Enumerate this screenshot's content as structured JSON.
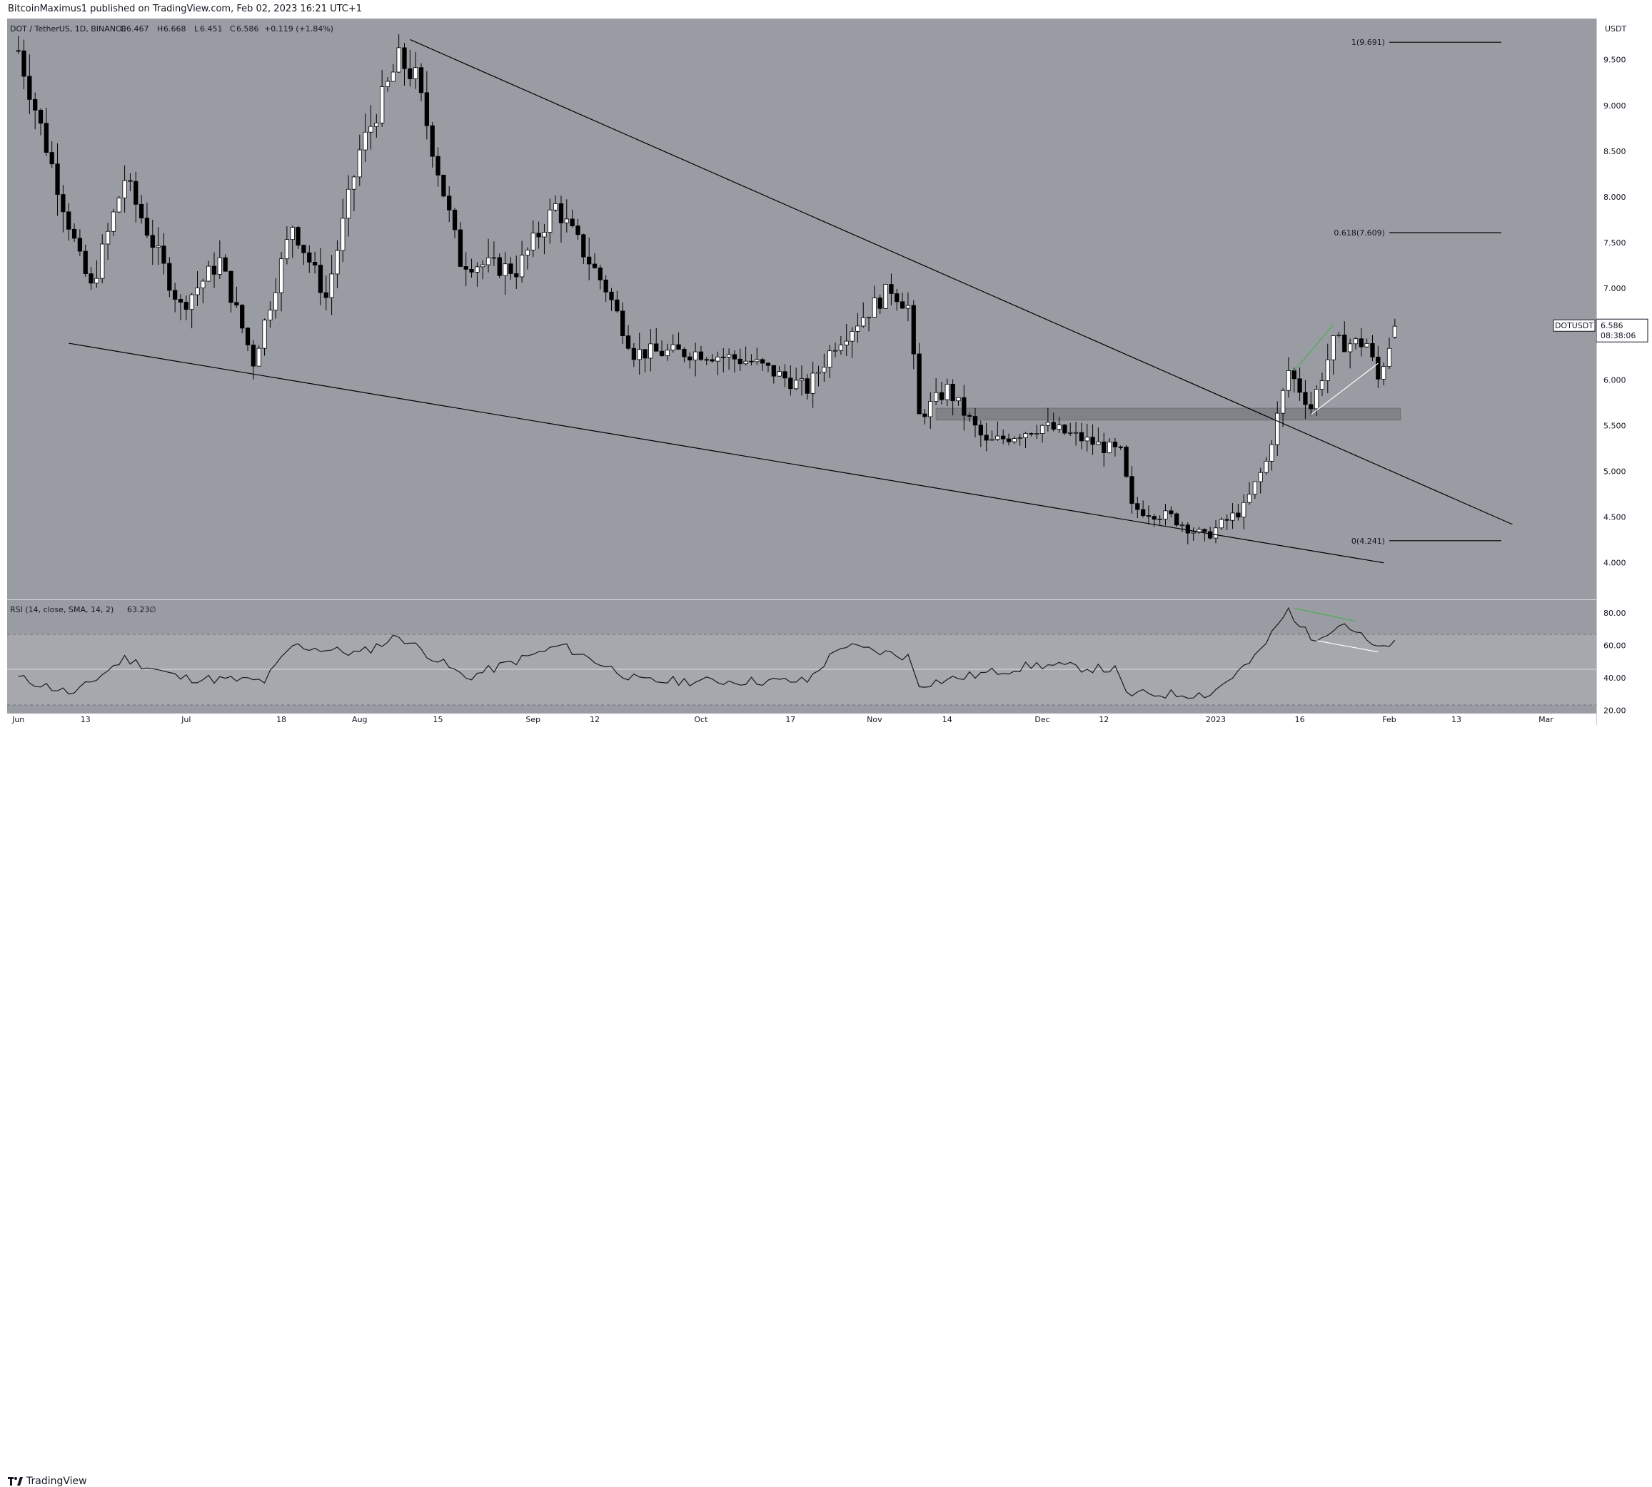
{
  "header": {
    "publisher": "BitcoinMaximus1 published on TradingView.com, Feb 02, 2023 16:21 UTC+1"
  },
  "legend": {
    "symbol": "DOT / TetherUS, 1D, BINANCE",
    "open_label": "O",
    "open": "6.467",
    "high_label": "H",
    "high": "6.668",
    "low_label": "L",
    "low": "6.451",
    "close_label": "C",
    "close": "6.586",
    "change": "+0.119 (+1.84%)"
  },
  "rsi_legend": {
    "label": "RSI (14, close, SMA, 14, 2)",
    "value": "63.23",
    "extra": "∅"
  },
  "price_axis": {
    "currency": "USDT",
    "ticks": [
      "9.500",
      "9.000",
      "8.500",
      "8.000",
      "7.500",
      "7.000",
      "6.500",
      "6.000",
      "5.500",
      "5.000",
      "4.500",
      "4.000"
    ]
  },
  "rsi_axis": {
    "ticks": [
      "80.00",
      "60.00",
      "40.00",
      "20.00"
    ]
  },
  "time_axis": {
    "labels": [
      "Jun",
      "13",
      "Jul",
      "18",
      "Aug",
      "15",
      "Sep",
      "12",
      "Oct",
      "17",
      "Nov",
      "14",
      "Dec",
      "12",
      "2023",
      "16",
      "Feb",
      "13",
      "Mar"
    ]
  },
  "current_price_tag": {
    "symbol": "DOTUSDT",
    "price": "6.586",
    "countdown": "08:38:06"
  },
  "fib_levels": [
    {
      "label": "1(9.691)",
      "value": 9.691
    },
    {
      "label": "0.618(7.609)",
      "value": 7.609
    },
    {
      "label": "0(4.241)",
      "value": 4.241
    }
  ],
  "footer": {
    "brand": "TradingView"
  },
  "colors": {
    "pane_bg": "#9a9ca3",
    "rsi_bg": "#9a9ca3",
    "rsi_band": "#a6a8ae",
    "candle_up": "#ffffff",
    "candle_down": "#000000",
    "wick": "#000000",
    "line": "#000000",
    "green": "#4caf50",
    "white": "#ffffff",
    "zone": "#808287"
  },
  "chart_data": {
    "type": "candlestick",
    "title": "DOT / TetherUS, 1D, BINANCE",
    "ylabel": "USDT",
    "ylim": [
      3.6,
      9.95
    ],
    "anchor_points": [
      {
        "date": "2022-06-01",
        "close": 9.6
      },
      {
        "date": "2022-06-12",
        "close": 7.3
      },
      {
        "date": "2022-06-14",
        "close": 7.0
      },
      {
        "date": "2022-06-20",
        "close": 8.2
      },
      {
        "date": "2022-06-30",
        "close": 6.8
      },
      {
        "date": "2022-07-07",
        "close": 7.3
      },
      {
        "date": "2022-07-13",
        "close": 6.2
      },
      {
        "date": "2022-07-20",
        "close": 7.7
      },
      {
        "date": "2022-07-26",
        "close": 6.9
      },
      {
        "date": "2022-08-01",
        "close": 8.5
      },
      {
        "date": "2022-08-08",
        "close": 9.5
      },
      {
        "date": "2022-08-11",
        "close": 9.3
      },
      {
        "date": "2022-08-19",
        "close": 7.3
      },
      {
        "date": "2022-08-29",
        "close": 7.2
      },
      {
        "date": "2022-09-05",
        "close": 7.9
      },
      {
        "date": "2022-09-14",
        "close": 7.0
      },
      {
        "date": "2022-09-19",
        "close": 6.3
      },
      {
        "date": "2022-10-01",
        "close": 6.3
      },
      {
        "date": "2022-10-10",
        "close": 6.2
      },
      {
        "date": "2022-10-20",
        "close": 5.9
      },
      {
        "date": "2022-10-25",
        "close": 6.4
      },
      {
        "date": "2022-11-04",
        "close": 7.0
      },
      {
        "date": "2022-11-07",
        "close": 6.8
      },
      {
        "date": "2022-11-09",
        "close": 5.6
      },
      {
        "date": "2022-11-14",
        "close": 5.9
      },
      {
        "date": "2022-11-21",
        "close": 5.3
      },
      {
        "date": "2022-12-01",
        "close": 5.5
      },
      {
        "date": "2022-12-06",
        "close": 5.4
      },
      {
        "date": "2022-12-15",
        "close": 5.2
      },
      {
        "date": "2022-12-17",
        "close": 4.6
      },
      {
        "date": "2022-12-24",
        "close": 4.5
      },
      {
        "date": "2022-12-30",
        "close": 4.28
      },
      {
        "date": "2023-01-06",
        "close": 4.6
      },
      {
        "date": "2023-01-10",
        "close": 5.1
      },
      {
        "date": "2023-01-14",
        "close": 6.1
      },
      {
        "date": "2023-01-18",
        "close": 5.7
      },
      {
        "date": "2023-01-22",
        "close": 6.4
      },
      {
        "date": "2023-01-28",
        "close": 6.4
      },
      {
        "date": "2023-01-30",
        "close": 6.0
      },
      {
        "date": "2023-02-02",
        "close": 6.586
      }
    ],
    "rsi_anchor_points": [
      {
        "date": "2022-06-01",
        "rsi": 40
      },
      {
        "date": "2022-06-11",
        "rsi": 30
      },
      {
        "date": "2022-06-20",
        "rsi": 52
      },
      {
        "date": "2022-06-30",
        "rsi": 40
      },
      {
        "date": "2022-07-15",
        "rsi": 38
      },
      {
        "date": "2022-07-20",
        "rsi": 60
      },
      {
        "date": "2022-08-01",
        "rsi": 55
      },
      {
        "date": "2022-08-08",
        "rsi": 66
      },
      {
        "date": "2022-08-20",
        "rsi": 40
      },
      {
        "date": "2022-09-06",
        "rsi": 60
      },
      {
        "date": "2022-09-20",
        "rsi": 38
      },
      {
        "date": "2022-10-20",
        "rsi": 38
      },
      {
        "date": "2022-10-26",
        "rsi": 60
      },
      {
        "date": "2022-11-07",
        "rsi": 53
      },
      {
        "date": "2022-11-09",
        "rsi": 36
      },
      {
        "date": "2022-11-30",
        "rsi": 48
      },
      {
        "date": "2022-12-14",
        "rsi": 45
      },
      {
        "date": "2022-12-16",
        "rsi": 30
      },
      {
        "date": "2022-12-31",
        "rsi": 30
      },
      {
        "date": "2023-01-08",
        "rsi": 52
      },
      {
        "date": "2023-01-14",
        "rsi": 82
      },
      {
        "date": "2023-01-18",
        "rsi": 64
      },
      {
        "date": "2023-01-24",
        "rsi": 74
      },
      {
        "date": "2023-01-30",
        "rsi": 57
      },
      {
        "date": "2023-02-02",
        "rsi": 63.23
      }
    ],
    "rsi_ylim": [
      18,
      88
    ],
    "rsi_levels": [
      70,
      50,
      30
    ],
    "trendlines": [
      {
        "name": "descending resistance",
        "from": {
          "date": "2022-08-10",
          "price": 9.72
        },
        "to": {
          "date": "2023-02-23",
          "price": 4.42
        }
      },
      {
        "name": "descending support",
        "from": {
          "date": "2022-06-10",
          "price": 6.4
        },
        "to": {
          "date": "2023-01-31",
          "price": 4.0
        }
      },
      {
        "name": "green divergence",
        "color": "green",
        "from": {
          "date": "2023-01-15",
          "price": 6.1
        },
        "to": {
          "date": "2023-01-22",
          "price": 6.6
        }
      },
      {
        "name": "white divergence",
        "color": "white",
        "from": {
          "date": "2023-01-18",
          "price": 5.62
        },
        "to": {
          "date": "2023-01-30",
          "price": 6.18
        }
      }
    ],
    "rsi_trendlines": [
      {
        "color": "green",
        "from": {
          "date": "2023-01-15",
          "rsi": 83
        },
        "to": {
          "date": "2023-01-26",
          "rsi": 75
        }
      },
      {
        "color": "white",
        "from": {
          "date": "2023-01-19",
          "rsi": 63
        },
        "to": {
          "date": "2023-01-30",
          "rsi": 56
        }
      }
    ],
    "zone": {
      "from_date": "2022-11-12",
      "to_date": "2023-02-03",
      "low": 5.56,
      "high": 5.69
    },
    "x_axis": {
      "start": "2022-05-30",
      "end": "2023-03-10"
    }
  }
}
